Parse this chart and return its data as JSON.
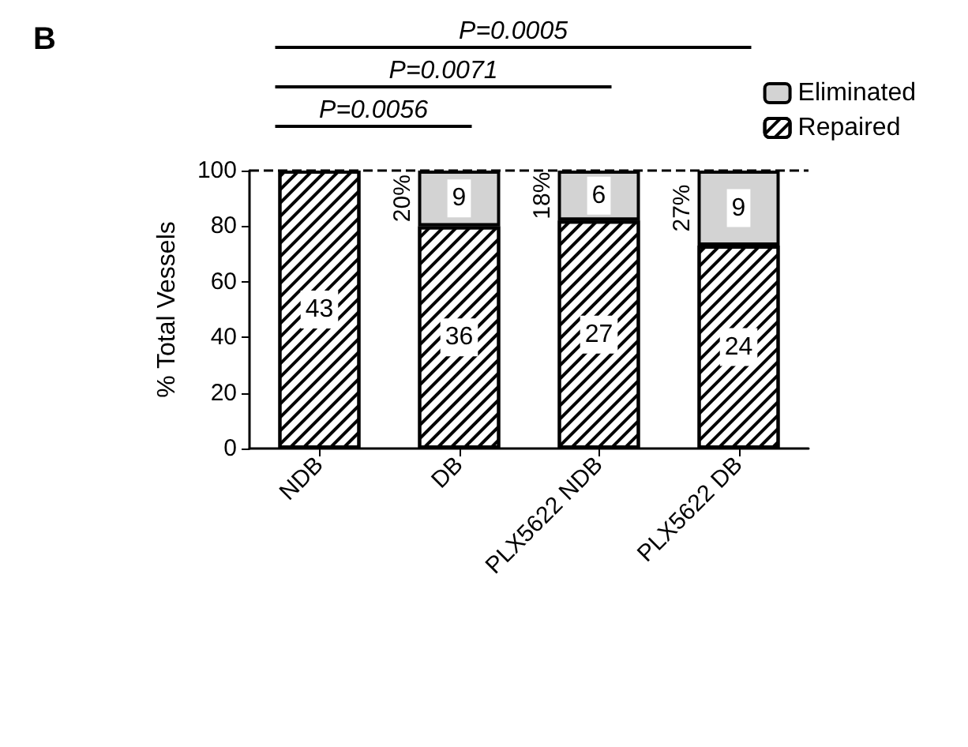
{
  "chart_data": {
    "type": "bar",
    "title": "B",
    "ylabel": "% Total Vessels",
    "categories": [
      "NDB",
      "DB",
      "PLX5622 NDB",
      "PLX5622 DB"
    ],
    "stacked": true,
    "series": [
      {
        "name": "Repaired",
        "color": "#ffffff",
        "values": [
          100,
          80,
          82,
          73
        ]
      },
      {
        "name": "Eliminated",
        "color": "#d3d3d3",
        "values": [
          null,
          20,
          18,
          27
        ]
      }
    ],
    "ylim": [
      0,
      100
    ],
    "yticks": [
      0,
      20,
      40,
      60,
      80,
      100
    ],
    "grid": false,
    "legend": "top right",
    "ref_lines": [
      {
        "axis": "y",
        "value": 100,
        "line_style": "dashed",
        "color": "#000000"
      }
    ],
    "annotations": [
      {
        "text": "20%",
        "x": "DB",
        "y": 90
      },
      {
        "text": "18%",
        "x": "PLX5622 NDB",
        "y": 91
      },
      {
        "text": "27%",
        "x": "PLX5622 DB",
        "y": 86.5
      },
      "P=0.0005",
      "P=0.0071",
      "P=0.0056",
      "43",
      "36",
      "27",
      "24",
      "9",
      "6",
      "9"
    ]
  }
}
